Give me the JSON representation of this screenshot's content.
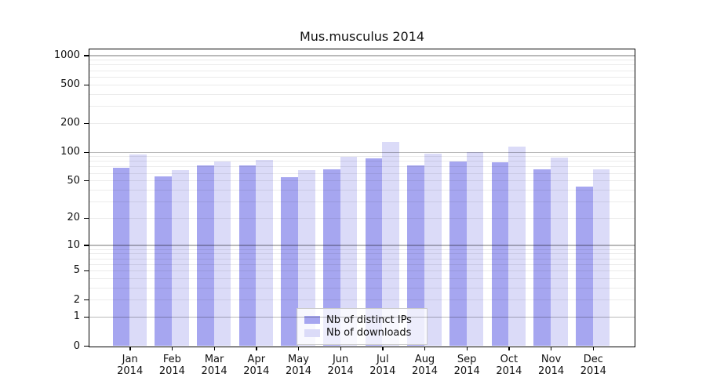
{
  "figure": {
    "title": "Mus.musculus 2014"
  },
  "chart_data": {
    "type": "bar",
    "title": "Mus.musculus 2014",
    "categories": [
      "Jan 2014",
      "Feb 2014",
      "Mar 2014",
      "Apr 2014",
      "May 2014",
      "Jun 2014",
      "Jul 2014",
      "Aug 2014",
      "Sep 2014",
      "Oct 2014",
      "Nov 2014",
      "Dec 2014"
    ],
    "series": [
      {
        "name": "Nb of distinct IPs",
        "color": "#a6a6f0",
        "values": [
          68,
          55,
          72,
          72,
          54,
          65,
          86,
          72,
          79,
          78,
          65,
          43
        ]
      },
      {
        "name": "Nb of downloads",
        "color": "#dbdbf8",
        "values": [
          94,
          64,
          79,
          82,
          64,
          88,
          126,
          96,
          100,
          112,
          87,
          65
        ]
      }
    ],
    "xlabel": "",
    "ylabel": "",
    "yscale": "log1p",
    "ylim": [
      0,
      1215
    ],
    "ytick_values": [
      0,
      1,
      2,
      5,
      10,
      20,
      50,
      100,
      200,
      500,
      1000
    ],
    "ytick_labels": [
      "0",
      "1",
      "2",
      "5",
      "10",
      "20",
      "50",
      "100",
      "200",
      "500",
      "1000"
    ],
    "grid_minor_values": [
      2,
      3,
      4,
      5,
      6,
      7,
      8,
      9,
      20,
      30,
      40,
      50,
      60,
      70,
      80,
      90,
      200,
      300,
      400,
      500,
      600,
      700,
      800,
      900
    ],
    "grid_major_values": [
      1,
      10,
      100,
      1000
    ],
    "grid": "on",
    "legend_position": "lower center inside"
  },
  "colors": {
    "distinct_ips": "#a6a6f0",
    "downloads": "#dbdbf8",
    "grid_minor": "rgba(0,0,0,0.08)",
    "grid_major": "rgba(0,0,0,0.27)",
    "spine": "#000000",
    "legend_border": "#cccccc",
    "text": "#111111"
  }
}
